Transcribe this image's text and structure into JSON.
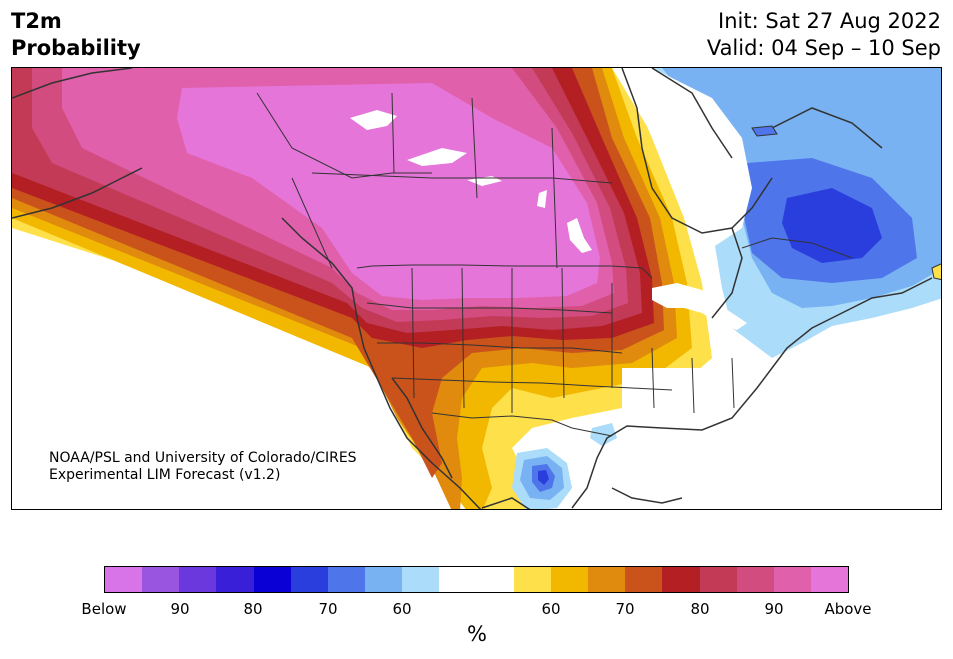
{
  "title_left": "T2m\nProbability",
  "init_text": "Init: Sat 27 Aug 2022",
  "valid_text": "Valid: 04 Sep – 10 Sep",
  "credit_line1": "NOAA/PSL and University of Colorado/CIRES",
  "credit_line2": "Experimental LIM Forecast (v1.2)",
  "colorbar": {
    "colors": [
      "#d873e8",
      "#9a55e0",
      "#6a38dc",
      "#3a1fd8",
      "#0a00d6",
      "#2a3ede",
      "#4f75ea",
      "#78b2f2",
      "#abdcfa",
      "#ffffff",
      "#ffffff",
      "#fee04a",
      "#f2b800",
      "#e08a0e",
      "#c9531a",
      "#b41f24",
      "#c23a55",
      "#d24c80",
      "#e060ab",
      "#e675da"
    ],
    "tick_labels": [
      "Below",
      "90",
      "80",
      "70",
      "60",
      "60",
      "70",
      "80",
      "90",
      "Above"
    ],
    "unit_label": "%"
  },
  "palette": {
    "above_max": "#e675da",
    "above_90": "#e060ab",
    "above_85": "#d24c80",
    "above_80": "#c23a55",
    "above_75": "#b41f24",
    "above_70": "#c9531a",
    "above_65": "#e08a0e",
    "above_60": "#f2b800",
    "above_55": "#fee04a",
    "below_55": "#abdcfa",
    "below_60": "#78b2f2",
    "below_65": "#4f75ea",
    "below_70": "#2a3ede",
    "lakes": "#ffffff",
    "borders": "#333333"
  }
}
